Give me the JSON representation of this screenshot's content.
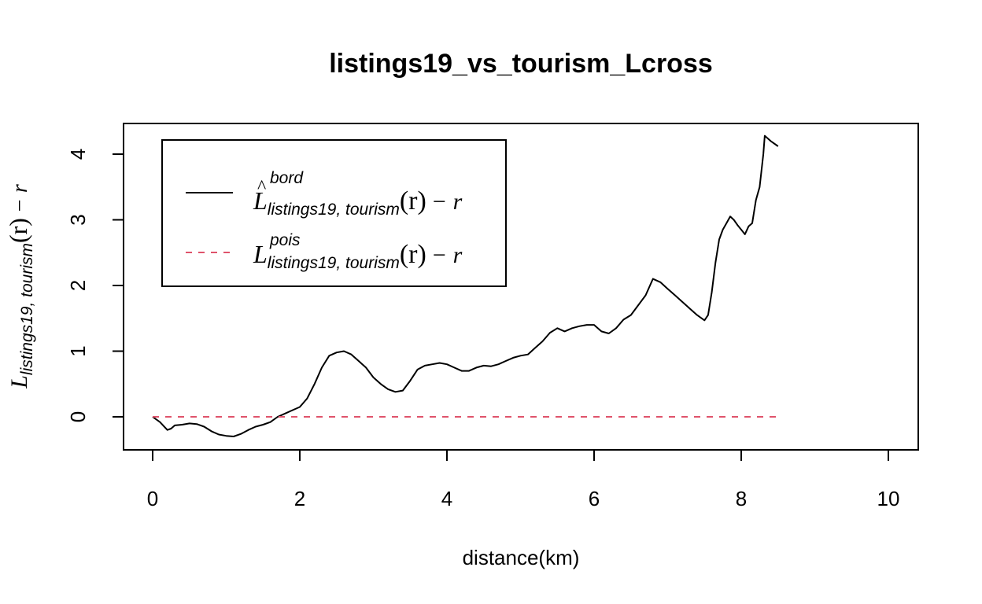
{
  "chart_data": {
    "type": "line",
    "title": "listings19_vs_tourism_Lcross",
    "xlabel": "distance(km)",
    "ylabel": {
      "main": "L",
      "subscript": "listings19, tourism",
      "arg": "(r)",
      "suffix": "− r"
    },
    "xlim": [
      0,
      10
    ],
    "ylim": [
      -0.5,
      4.5
    ],
    "x_ticks": [
      "0",
      "2",
      "4",
      "6",
      "8",
      "10"
    ],
    "y_ticks": [
      "0",
      "1",
      "2",
      "3",
      "4"
    ],
    "legend": {
      "position": "top-left",
      "entries": [
        {
          "main": "L",
          "hat": "^",
          "superscript": "bord",
          "subscript": "listings19, tourism",
          "arg": "(r)",
          "suffix": "− r"
        },
        {
          "main": "L",
          "hat": "",
          "superscript": "pois",
          "subscript": "listings19, tourism",
          "arg": "(r)",
          "suffix": "− r"
        }
      ]
    },
    "series": [
      {
        "color": "#000000",
        "dash": "solid",
        "x": [
          0.0,
          0.1,
          0.2,
          0.25,
          0.3,
          0.4,
          0.5,
          0.6,
          0.7,
          0.8,
          0.9,
          1.0,
          1.1,
          1.2,
          1.3,
          1.4,
          1.5,
          1.6,
          1.7,
          1.8,
          1.9,
          2.0,
          2.1,
          2.2,
          2.3,
          2.4,
          2.5,
          2.6,
          2.7,
          2.8,
          2.9,
          3.0,
          3.1,
          3.2,
          3.3,
          3.4,
          3.5,
          3.6,
          3.7,
          3.8,
          3.9,
          4.0,
          4.1,
          4.2,
          4.3,
          4.4,
          4.5,
          4.6,
          4.7,
          4.8,
          4.9,
          5.0,
          5.1,
          5.2,
          5.3,
          5.4,
          5.5,
          5.6,
          5.7,
          5.8,
          5.9,
          6.0,
          6.1,
          6.2,
          6.3,
          6.4,
          6.5,
          6.6,
          6.7,
          6.8,
          6.9,
          7.0,
          7.1,
          7.2,
          7.3,
          7.4,
          7.5,
          7.55,
          7.6,
          7.65,
          7.7,
          7.75,
          7.8,
          7.85,
          7.9,
          7.95,
          8.0,
          8.05,
          8.1,
          8.15,
          8.2,
          8.25,
          8.3,
          8.32,
          8.35,
          8.4,
          8.5
        ],
        "y": [
          0.0,
          -0.08,
          -0.2,
          -0.18,
          -0.13,
          -0.12,
          -0.1,
          -0.11,
          -0.15,
          -0.22,
          -0.27,
          -0.29,
          -0.3,
          -0.26,
          -0.2,
          -0.15,
          -0.12,
          -0.08,
          0.0,
          0.05,
          0.1,
          0.15,
          0.28,
          0.5,
          0.75,
          0.93,
          0.98,
          1.0,
          0.95,
          0.85,
          0.75,
          0.6,
          0.5,
          0.42,
          0.38,
          0.4,
          0.55,
          0.72,
          0.78,
          0.8,
          0.82,
          0.8,
          0.75,
          0.7,
          0.7,
          0.75,
          0.78,
          0.77,
          0.8,
          0.85,
          0.9,
          0.93,
          0.95,
          1.05,
          1.15,
          1.28,
          1.35,
          1.3,
          1.35,
          1.38,
          1.4,
          1.4,
          1.3,
          1.27,
          1.35,
          1.48,
          1.55,
          1.7,
          1.85,
          2.1,
          2.05,
          1.95,
          1.85,
          1.75,
          1.65,
          1.55,
          1.47,
          1.55,
          1.9,
          2.35,
          2.7,
          2.85,
          2.95,
          3.05,
          3.0,
          2.92,
          2.85,
          2.78,
          2.9,
          2.95,
          3.3,
          3.5,
          4.0,
          4.28,
          4.25,
          4.2,
          4.12
        ]
      },
      {
        "color": "#DF536B",
        "dash": "dashed",
        "x": [
          0.0,
          8.5
        ],
        "y": [
          0.0,
          0.0
        ]
      }
    ]
  }
}
